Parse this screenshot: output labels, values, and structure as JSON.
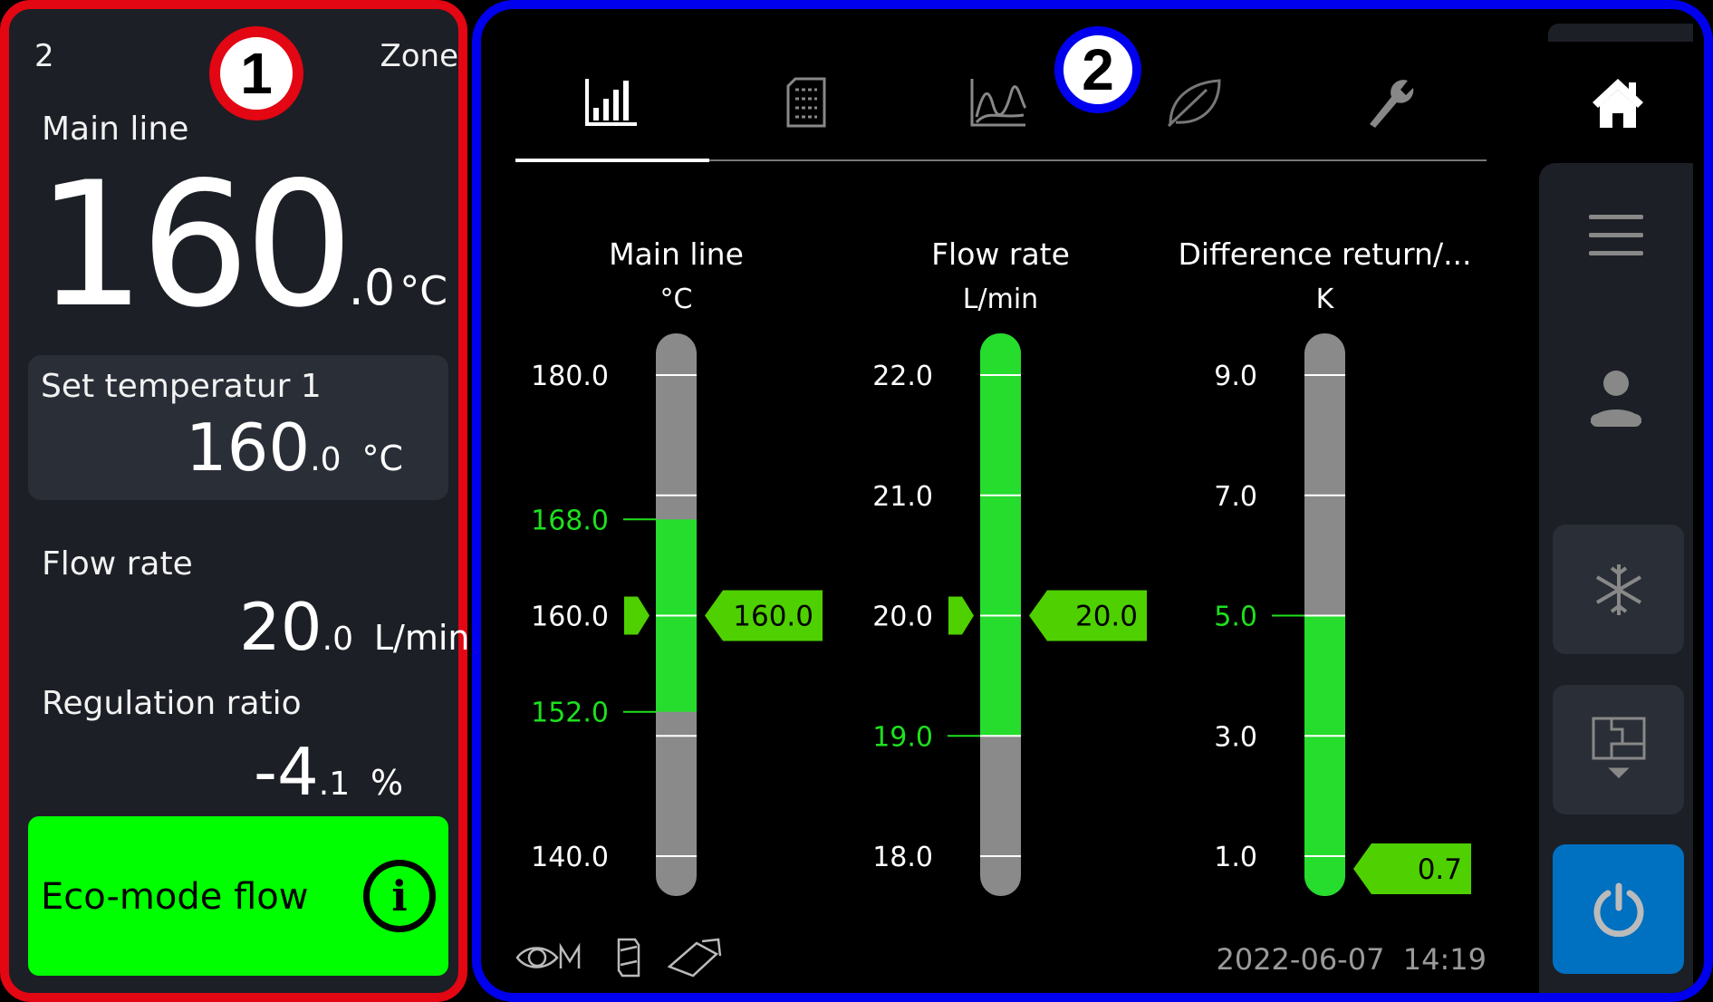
{
  "zone_panel": {
    "zone_number": "2",
    "zone_label": "Zone",
    "badge": "1",
    "main_line": {
      "label": "Main line",
      "int": "160",
      "dec": ".0",
      "unit": "°C"
    },
    "setpoint": {
      "label": "Set temperatur 1",
      "int": "160",
      "dec": ".0",
      "unit": "°C"
    },
    "flow_rate": {
      "label": "Flow rate",
      "int": "20",
      "dec": ".0",
      "unit": "L/min"
    },
    "regulation_ratio": {
      "label": "Regulation ratio",
      "int": "-4",
      "dec": ".1",
      "unit": "%"
    },
    "eco_mode": {
      "label": "Eco-mode flow",
      "icon": "info-icon",
      "color": "#00ff00"
    }
  },
  "main_panel": {
    "badge": "2",
    "tabs": [
      {
        "icon": "bar-chart-icon",
        "active": true
      },
      {
        "icon": "document-icon",
        "active": false
      },
      {
        "icon": "line-chart-icon",
        "active": false
      },
      {
        "icon": "leaf-icon",
        "active": false
      },
      {
        "icon": "wrench-icon",
        "active": false
      }
    ],
    "gauges": [
      {
        "title": "Main line",
        "unit": "°C",
        "min": 140,
        "max": 180,
        "ticks": [
          "180.0",
          "170.0",
          "160.0",
          "150.0",
          "140.0"
        ],
        "tick_values": [
          180,
          170,
          160,
          150,
          140
        ],
        "labels": [
          {
            "v": 180,
            "t": "180.0"
          },
          {
            "v": 160,
            "t": "160.0"
          },
          {
            "v": 140,
            "t": "140.0"
          }
        ],
        "limits": [
          {
            "v": 168,
            "t": "168.0"
          },
          {
            "v": 152,
            "t": "152.0"
          }
        ],
        "green_range": [
          152,
          168
        ],
        "setpoint": 160,
        "value": 160,
        "value_text": "160.0"
      },
      {
        "title": "Flow rate",
        "unit": "L/min",
        "min": 18,
        "max": 22,
        "tick_values": [
          22,
          21,
          20,
          19,
          18
        ],
        "labels": [
          {
            "v": 22,
            "t": "22.0"
          },
          {
            "v": 21,
            "t": "21.0"
          },
          {
            "v": 20,
            "t": "20.0"
          },
          {
            "v": 18,
            "t": "18.0"
          }
        ],
        "limits": [
          {
            "v": 19,
            "t": "19.0"
          }
        ],
        "green_range": [
          19,
          22.5
        ],
        "setpoint": 20,
        "value": 20,
        "value_text": "20.0"
      },
      {
        "title": "Difference return/...",
        "unit": "K",
        "min": 1,
        "max": 9,
        "tick_values": [
          9,
          7,
          5,
          3,
          1
        ],
        "labels": [
          {
            "v": 9,
            "t": "9.0"
          },
          {
            "v": 7,
            "t": "7.0"
          },
          {
            "v": 3,
            "t": "3.0"
          },
          {
            "v": 1,
            "t": "1.0"
          }
        ],
        "limits": [
          {
            "v": 5,
            "t": "5.0"
          }
        ],
        "green_range": [
          0,
          5
        ],
        "setpoint": null,
        "value": 0.7,
        "value_text": "0.7"
      }
    ],
    "footer": {
      "date": "2022-06-07",
      "time": "14:19",
      "icons": [
        "eye-m-icon",
        "sd-card-icon",
        "usb-icon"
      ]
    }
  },
  "sidebar": {
    "items": [
      "home-icon",
      "menu-icon",
      "user-icon",
      "snowflake-icon",
      "floorplan-icon",
      "power-icon"
    ]
  },
  "colors": {
    "green": "#26dc2d",
    "tag_green": "#4fd000",
    "limit_green": "#1ee01e",
    "bar_gray": "#8a8a8a",
    "power_blue": "#0070c0",
    "panel": "#1c1f26"
  }
}
